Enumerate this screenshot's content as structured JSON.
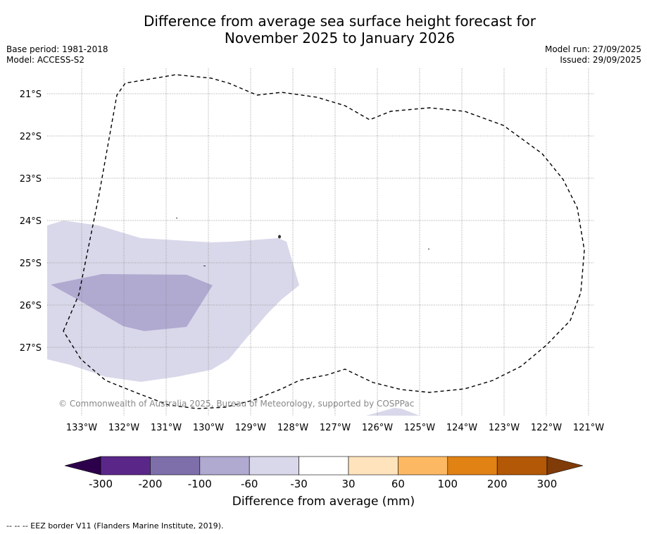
{
  "title": {
    "line1": "Difference from average sea surface height forecast for",
    "line2": "November 2025 to January 2026"
  },
  "meta_left": {
    "base_period": "Base period: 1981-2018",
    "model": "Model: ACCESS-S2"
  },
  "meta_right": {
    "model_run": "Model run: 27/09/2025",
    "issued": "Issued: 29/09/2025"
  },
  "map": {
    "longitude_labels": [
      "133°W",
      "132°W",
      "131°W",
      "130°W",
      "129°W",
      "128°W",
      "127°W",
      "126°W",
      "125°W",
      "124°W",
      "123°W",
      "122°W",
      "121°W"
    ],
    "latitude_labels": [
      "21°S",
      "22°S",
      "23°S",
      "24°S",
      "25°S",
      "26°S",
      "27°S"
    ],
    "copyright": "© Commonwealth of Australia 2025, Bureau of Meteorology, supported by COSPPac"
  },
  "colorbar": {
    "ticks": [
      "-300",
      "-200",
      "-100",
      "-60",
      "-30",
      "30",
      "60",
      "100",
      "200",
      "300"
    ],
    "colors": [
      "#5a2789",
      "#7e6fab",
      "#b0a9d0",
      "#d9d8ea",
      "#ffffff",
      "#fee3bc",
      "#fdb863",
      "#e08214",
      "#b35806"
    ],
    "under_color": "#2d004b",
    "over_color": "#7f3b08",
    "label": "Difference from average (mm)"
  },
  "footer": "-- -- -- EEZ border V11 (Flanders Marine Institute, 2019)."
}
